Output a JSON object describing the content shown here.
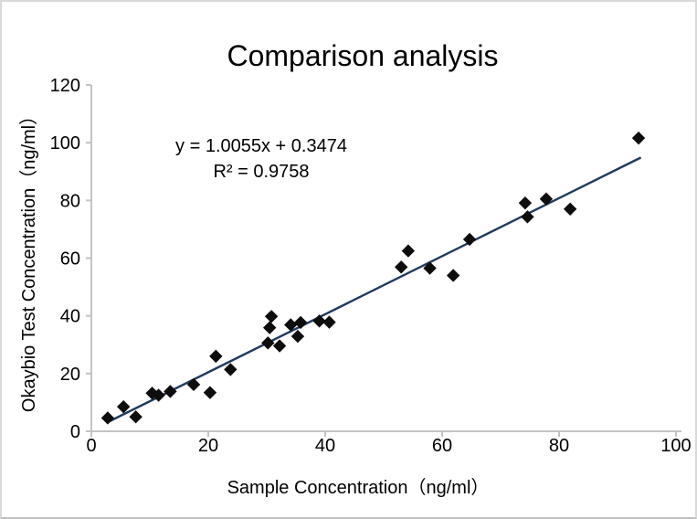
{
  "chart_data": {
    "type": "scatter",
    "title": "Comparison analysis",
    "xlabel": "Sample Concentration（ng/ml）",
    "ylabel": "Okaybio Test Concentration（ng/ml）",
    "xlim": [
      0,
      100
    ],
    "ylim": [
      0,
      120
    ],
    "x_ticks": [
      0,
      20,
      40,
      60,
      80,
      100
    ],
    "y_ticks": [
      0,
      20,
      40,
      60,
      80,
      100,
      120
    ],
    "grid": false,
    "legend": false,
    "marker_shape": "filled-diamond",
    "points": [
      [
        2.8,
        4.6
      ],
      [
        5.5,
        8.5
      ],
      [
        7.6,
        5.0
      ],
      [
        10.4,
        13.2
      ],
      [
        11.5,
        12.5
      ],
      [
        13.5,
        13.8
      ],
      [
        17.5,
        16.2
      ],
      [
        20.3,
        13.4
      ],
      [
        21.3,
        26.0
      ],
      [
        23.8,
        21.4
      ],
      [
        30.2,
        30.6
      ],
      [
        30.5,
        35.9
      ],
      [
        30.8,
        39.8
      ],
      [
        32.2,
        29.6
      ],
      [
        34.1,
        36.9
      ],
      [
        35.3,
        32.9
      ],
      [
        35.8,
        37.7
      ],
      [
        39.0,
        38.2
      ],
      [
        40.7,
        37.8
      ],
      [
        53.0,
        56.9
      ],
      [
        54.2,
        62.5
      ],
      [
        57.9,
        56.5
      ],
      [
        61.9,
        54.0
      ],
      [
        64.7,
        66.5
      ],
      [
        74.2,
        79.1
      ],
      [
        74.6,
        74.3
      ],
      [
        77.8,
        80.5
      ],
      [
        81.9,
        77.0
      ],
      [
        93.6,
        101.6
      ]
    ],
    "trendline": {
      "slope": 1.0055,
      "intercept": 0.3474,
      "x_start": 2.8,
      "x_end": 94.0
    },
    "annotation": {
      "equation": "y = 1.0055x + 0.3474",
      "r_squared": "R² = 0.9758"
    },
    "colors": {
      "marker": "#0d0d0d",
      "trendline": "#1f3a5f",
      "axis": "#c3c3c3",
      "text": "#000000"
    }
  }
}
